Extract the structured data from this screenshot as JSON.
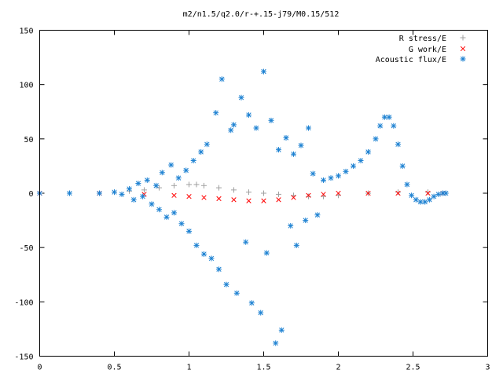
{
  "chart_data": {
    "type": "scatter",
    "title": "m2/n1.5/q2.0/r-+.15-j79/M0.15/512",
    "xlabel": "",
    "ylabel": "",
    "xlim": [
      0,
      3
    ],
    "ylim": [
      -150,
      150
    ],
    "x_ticks": [
      "0",
      "0.5",
      "1",
      "1.5",
      "2",
      "2.5",
      "3"
    ],
    "y_ticks": [
      "150",
      "100",
      "50",
      "0",
      "-50",
      "-100",
      "-150"
    ],
    "grid": false,
    "legend_position": "top-right",
    "series": [
      {
        "name": "R stress/E",
        "color": "#a0a0a0",
        "marker": "plus",
        "x": [
          0.0,
          0.2,
          0.4,
          0.5,
          0.6,
          0.7,
          0.8,
          0.9,
          1.0,
          1.05,
          1.1,
          1.2,
          1.3,
          1.4,
          1.5,
          1.6,
          1.7,
          1.8,
          1.9,
          2.0,
          2.2,
          2.4,
          2.6,
          2.7
        ],
        "y": [
          0,
          0,
          0,
          1,
          2,
          3,
          5,
          7,
          8,
          8,
          7,
          5,
          3,
          1,
          0,
          -1,
          -2,
          -3,
          -3,
          -2,
          0,
          1,
          1,
          0
        ]
      },
      {
        "name": "G work/E",
        "color": "#ff0000",
        "marker": "cross",
        "x": [
          0.0,
          0.4,
          0.7,
          0.9,
          1.0,
          1.1,
          1.2,
          1.3,
          1.4,
          1.5,
          1.6,
          1.7,
          1.8,
          1.9,
          2.0,
          2.2,
          2.4,
          2.6,
          2.7
        ],
        "y": [
          0,
          0,
          -1,
          -2,
          -3,
          -4,
          -5,
          -6,
          -7,
          -7,
          -6,
          -4,
          -2,
          -1,
          0,
          0,
          0,
          0,
          0
        ]
      },
      {
        "name": "Acoustic flux/E",
        "color": "#1e82d2",
        "marker": "star",
        "x": [
          0.0,
          0.2,
          0.4,
          0.5,
          0.55,
          0.6,
          0.63,
          0.66,
          0.69,
          0.72,
          0.75,
          0.78,
          0.8,
          0.82,
          0.85,
          0.88,
          0.9,
          0.93,
          0.95,
          0.98,
          1.0,
          1.03,
          1.05,
          1.08,
          1.1,
          1.12,
          1.15,
          1.18,
          1.2,
          1.22,
          1.25,
          1.28,
          1.3,
          1.32,
          1.35,
          1.38,
          1.4,
          1.42,
          1.45,
          1.48,
          1.5,
          1.52,
          1.55,
          1.58,
          1.6,
          1.62,
          1.65,
          1.68,
          1.7,
          1.72,
          1.75,
          1.78,
          1.8,
          1.83,
          1.86,
          1.9,
          1.95,
          2.0,
          2.05,
          2.1,
          2.15,
          2.2,
          2.25,
          2.28,
          2.31,
          2.34,
          2.37,
          2.4,
          2.43,
          2.46,
          2.49,
          2.52,
          2.55,
          2.58,
          2.61,
          2.64,
          2.67,
          2.7,
          2.72
        ],
        "y": [
          0,
          0,
          0,
          1,
          -1,
          4,
          -6,
          9,
          -3,
          12,
          -10,
          7,
          -15,
          19,
          -22,
          26,
          -18,
          14,
          -28,
          21,
          -35,
          30,
          -48,
          38,
          -56,
          45,
          -60,
          74,
          -70,
          105,
          -84,
          58,
          63,
          -92,
          88,
          -45,
          72,
          -101,
          60,
          -110,
          112,
          -55,
          67,
          -138,
          40,
          -126,
          51,
          -30,
          36,
          -48,
          44,
          -25,
          60,
          18,
          -20,
          12,
          14,
          16,
          20,
          25,
          30,
          38,
          50,
          62,
          70,
          70,
          62,
          45,
          25,
          8,
          -2,
          -6,
          -8,
          -8,
          -6,
          -3,
          -1,
          0,
          0
        ]
      }
    ]
  }
}
